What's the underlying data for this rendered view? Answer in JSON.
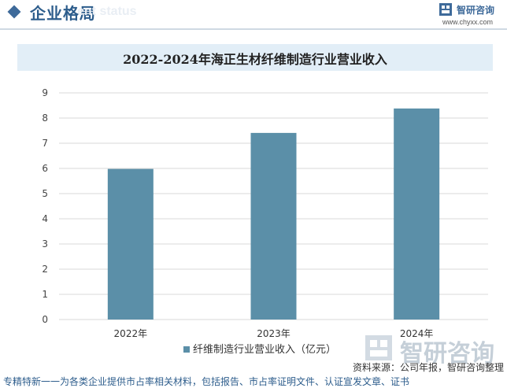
{
  "header": {
    "section_title": "企业格局",
    "section_subtitle": "ent status",
    "logo_name": "智研咨询",
    "logo_url": "www.chyxx.com",
    "watermark_text": "智研咨询"
  },
  "chart_data": {
    "type": "bar",
    "title": "2022-2024年海正生材纤维制造行业营业收入",
    "categories": [
      "2022年",
      "2023年",
      "2024年"
    ],
    "series": [
      {
        "name": "纤维制造行业营业收入（亿元）",
        "values": [
          5.98,
          7.41,
          8.38
        ],
        "color": "#5b8fa8"
      }
    ],
    "ylim": [
      0,
      9
    ],
    "yticks": [
      0,
      1,
      2,
      3,
      4,
      5,
      6,
      7,
      8,
      9
    ],
    "grid": true,
    "legend": "bottom",
    "xlabel": "",
    "ylabel": ""
  },
  "source": "资料来源：公司年报，智研咨询整理",
  "footer": "专精特新一一为各类企业提供市占率相关材料，包括报告、市占率证明文件、认证宣发文章、证书"
}
